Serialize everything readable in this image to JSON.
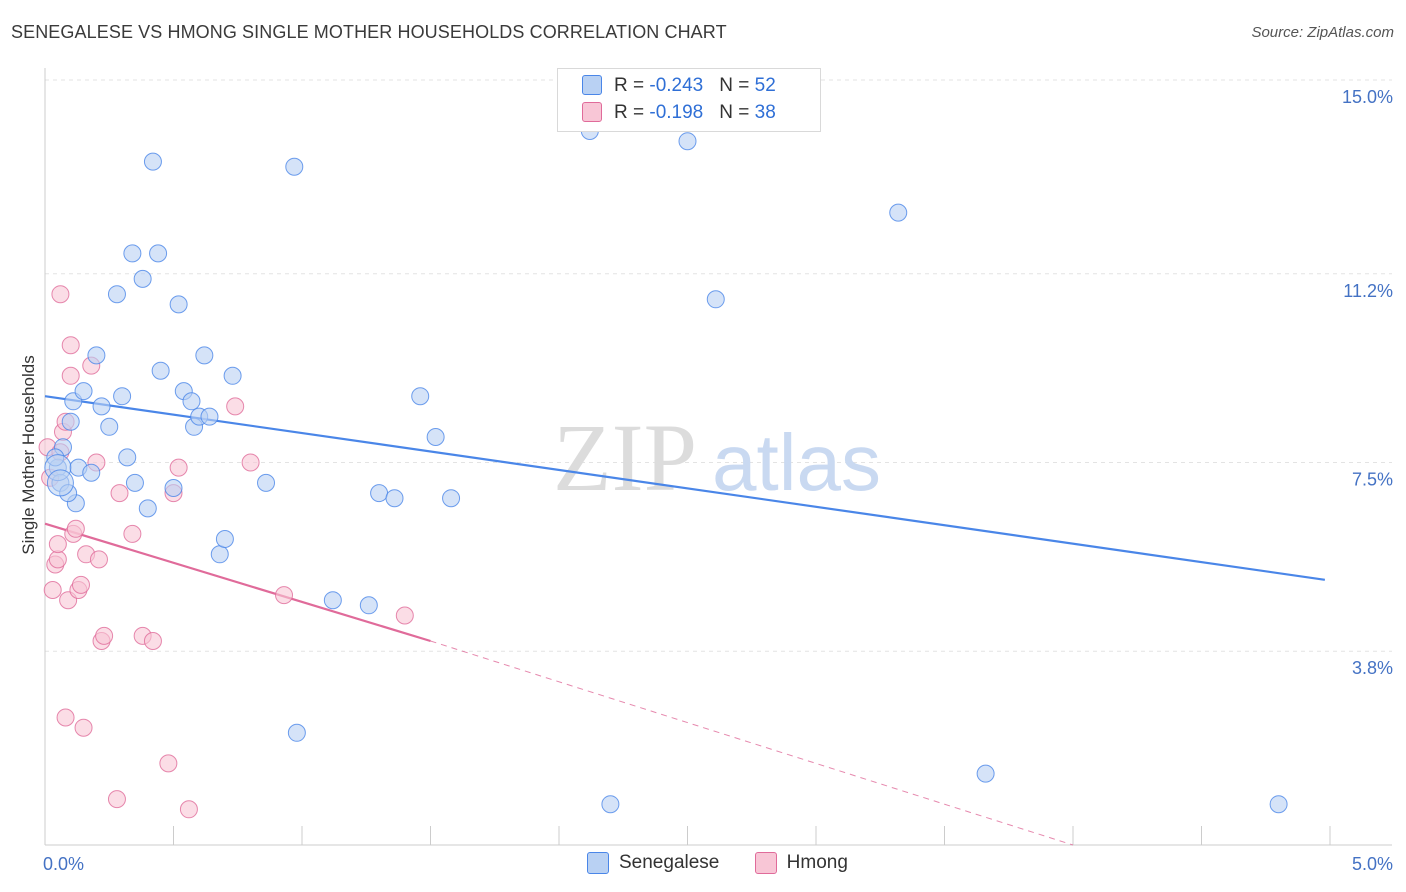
{
  "chart_data": {
    "type": "scatter",
    "title": "SENEGALESE VS HMONG SINGLE MOTHER HOUSEHOLDS CORRELATION CHART",
    "source": "Source: ZipAtlas.com",
    "xlabel": "",
    "ylabel": "Single Mother Households",
    "xlim": [
      0.0,
      5.0
    ],
    "ylim": [
      0.0,
      15.0
    ],
    "x_tick_labels": [
      "0.0%",
      "5.0%"
    ],
    "y_ticks": [
      3.8,
      7.5,
      11.2,
      15.0
    ],
    "y_tick_labels": [
      "3.8%",
      "7.5%",
      "11.2%",
      "15.0%"
    ],
    "grid": true,
    "legend_position": "top-center",
    "watermark": "ZIPatlas",
    "series": [
      {
        "name": "Senegalese",
        "color": "#4a86e8",
        "fill": "#b9d1f3",
        "R": "-0.243",
        "N": "52",
        "trend": {
          "x": [
            0.0,
            4.98
          ],
          "y": [
            8.8,
            5.2
          ],
          "dashed_to": null
        },
        "points": [
          [
            0.05,
            7.4
          ],
          [
            0.06,
            7.1
          ],
          [
            0.07,
            7.8
          ],
          [
            0.1,
            8.3
          ],
          [
            0.12,
            6.7
          ],
          [
            0.11,
            8.7
          ],
          [
            0.13,
            7.4
          ],
          [
            0.15,
            8.9
          ],
          [
            0.18,
            7.3
          ],
          [
            0.2,
            9.6
          ],
          [
            0.22,
            8.6
          ],
          [
            0.25,
            8.2
          ],
          [
            0.28,
            10.8
          ],
          [
            0.3,
            8.8
          ],
          [
            0.32,
            7.6
          ],
          [
            0.34,
            11.6
          ],
          [
            0.35,
            7.1
          ],
          [
            0.38,
            11.1
          ],
          [
            0.4,
            6.6
          ],
          [
            0.42,
            13.4
          ],
          [
            0.44,
            11.6
          ],
          [
            0.45,
            9.3
          ],
          [
            0.5,
            7.0
          ],
          [
            0.52,
            10.6
          ],
          [
            0.54,
            8.9
          ],
          [
            0.57,
            8.7
          ],
          [
            0.58,
            8.2
          ],
          [
            0.6,
            8.4
          ],
          [
            0.62,
            9.6
          ],
          [
            0.64,
            8.4
          ],
          [
            0.68,
            5.7
          ],
          [
            0.7,
            6.0
          ],
          [
            0.73,
            9.2
          ],
          [
            0.86,
            7.1
          ],
          [
            0.97,
            13.3
          ],
          [
            0.98,
            2.2
          ],
          [
            1.12,
            4.8
          ],
          [
            1.26,
            4.7
          ],
          [
            1.3,
            6.9
          ],
          [
            1.36,
            6.8
          ],
          [
            1.46,
            8.8
          ],
          [
            1.52,
            8.0
          ],
          [
            1.58,
            6.8
          ],
          [
            2.12,
            14.0
          ],
          [
            2.2,
            0.8
          ],
          [
            2.5,
            13.8
          ],
          [
            2.61,
            10.7
          ],
          [
            3.32,
            12.4
          ],
          [
            3.66,
            1.4
          ],
          [
            4.8,
            0.8
          ],
          [
            0.04,
            7.6
          ],
          [
            0.09,
            6.9
          ]
        ]
      },
      {
        "name": "Hmong",
        "color": "#e06b9a",
        "fill": "#f8c6d6",
        "R": "-0.198",
        "N": "38",
        "trend": {
          "x": [
            0.0,
            1.5
          ],
          "y": [
            6.3,
            4.0
          ],
          "dashed_to": [
            4.0,
            0.0
          ]
        },
        "points": [
          [
            0.01,
            7.8
          ],
          [
            0.02,
            7.2
          ],
          [
            0.03,
            5.0
          ],
          [
            0.04,
            5.5
          ],
          [
            0.05,
            5.6
          ],
          [
            0.06,
            7.7
          ],
          [
            0.07,
            8.1
          ],
          [
            0.05,
            5.9
          ],
          [
            0.06,
            10.8
          ],
          [
            0.08,
            8.3
          ],
          [
            0.08,
            2.5
          ],
          [
            0.09,
            4.8
          ],
          [
            0.1,
            9.8
          ],
          [
            0.1,
            9.2
          ],
          [
            0.11,
            6.1
          ],
          [
            0.12,
            6.2
          ],
          [
            0.13,
            5.0
          ],
          [
            0.14,
            5.1
          ],
          [
            0.15,
            2.3
          ],
          [
            0.16,
            5.7
          ],
          [
            0.18,
            9.4
          ],
          [
            0.2,
            7.5
          ],
          [
            0.21,
            5.6
          ],
          [
            0.22,
            4.0
          ],
          [
            0.23,
            4.1
          ],
          [
            0.28,
            0.9
          ],
          [
            0.29,
            6.9
          ],
          [
            0.34,
            6.1
          ],
          [
            0.38,
            4.1
          ],
          [
            0.42,
            4.0
          ],
          [
            0.48,
            1.6
          ],
          [
            0.5,
            6.9
          ],
          [
            0.52,
            7.4
          ],
          [
            0.56,
            0.7
          ],
          [
            0.74,
            8.6
          ],
          [
            0.8,
            7.5
          ],
          [
            0.93,
            4.9
          ],
          [
            1.4,
            4.5
          ]
        ]
      }
    ]
  }
}
